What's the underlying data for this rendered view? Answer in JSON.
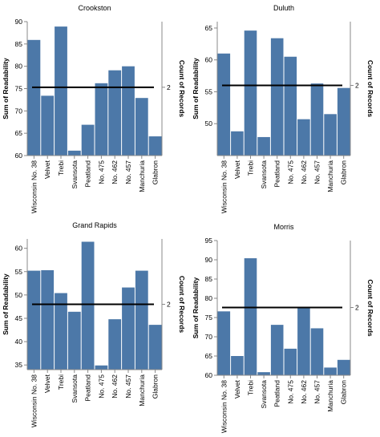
{
  "chart_data": [
    {
      "type": "bar",
      "title": "Crookston",
      "categories": [
        "Wisconsin No. 38",
        "Velvet",
        "Trebi",
        "Svansota",
        "Peatland",
        "No. 475",
        "No. 462",
        "No. 457",
        "Manchuria",
        "Glabron"
      ],
      "values": [
        85.9,
        73.4,
        88.9,
        61.1,
        66.9,
        76.2,
        79.1,
        80.0,
        72.9,
        64.3
      ],
      "ylabel": "Sum of Readability",
      "y2label": "Count of Records",
      "ylim": [
        60,
        90
      ],
      "yticks": [
        "60",
        "65",
        "70",
        "75",
        "80",
        "85",
        "90"
      ],
      "rule_value": 75.3,
      "rule_label": "2",
      "bar_color": "#4c78a8"
    },
    {
      "type": "bar",
      "title": "Duluth",
      "categories": [
        "Wisconsin No. 38",
        "Velvet",
        "Trebi",
        "Svansota",
        "Peatland",
        "No. 475",
        "No. 462",
        "No. 457",
        "Manchuria",
        "Glabron"
      ],
      "values": [
        61.0,
        48.8,
        64.6,
        47.9,
        63.4,
        60.5,
        50.7,
        56.3,
        51.5,
        55.6
      ],
      "ylabel": "Sum of Readability",
      "y2label": "Count of Records",
      "ylim": [
        45,
        66
      ],
      "yticks": [
        "50",
        "55",
        "60",
        "65"
      ],
      "rule_value": 56.0,
      "rule_label": "2",
      "bar_color": "#4c78a8"
    },
    {
      "type": "bar",
      "title": "Grand Rapids",
      "categories": [
        "Wisconsin No. 38",
        "Velvet",
        "Trebi",
        "Svansota",
        "Peatland",
        "No. 475",
        "No. 462",
        "No. 457",
        "Manchuria",
        "Glabron"
      ],
      "values": [
        55.2,
        55.3,
        50.4,
        46.4,
        61.4,
        34.9,
        44.8,
        51.6,
        55.2,
        43.6
      ],
      "ylabel": "Sum of Readability",
      "y2label": "Count of Records",
      "ylim": [
        34,
        62
      ],
      "yticks": [
        "35",
        "40",
        "45",
        "50",
        "55",
        "60"
      ],
      "rule_value": 48.0,
      "rule_label": "2",
      "bar_color": "#4c78a8"
    },
    {
      "type": "bar",
      "title": "Morris",
      "categories": [
        "Wisconsin No. 38",
        "Velvet",
        "Trebi",
        "Svansota",
        "Peatland",
        "No. 475",
        "No. 462",
        "No. 457",
        "Manchuria",
        "Glabron"
      ],
      "values": [
        76.6,
        65.0,
        90.4,
        60.8,
        73.1,
        66.9,
        77.5,
        72.2,
        62.0,
        64.0
      ],
      "ylabel": "Sum of Readability",
      "y2label": "Count of Records",
      "ylim": [
        60,
        95
      ],
      "yticks": [
        "60",
        "65",
        "70",
        "75",
        "80",
        "85",
        "90",
        "95"
      ],
      "rule_value": 77.6,
      "rule_label": "2",
      "bar_color": "#4c78a8"
    }
  ]
}
